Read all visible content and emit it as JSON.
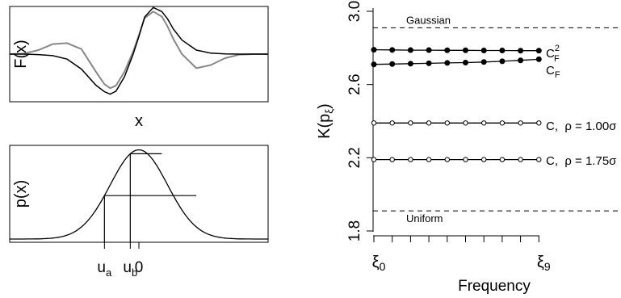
{
  "chart_data": [
    {
      "type": "line",
      "xlabel": "x",
      "ylabel": "F(x)",
      "grid": false,
      "series": [
        {
          "color": "#000000",
          "x": [
            -4.5,
            -4,
            -3.5,
            -3,
            -2.5,
            -2,
            -1.5,
            -1.2,
            -1,
            -0.8,
            -0.5,
            -0.2,
            0,
            0.2,
            0.5,
            0.8,
            1,
            1.2,
            1.5,
            2,
            2.5,
            3,
            3.5,
            4,
            4.5
          ],
          "y": [
            0,
            0,
            -0.01,
            -0.03,
            -0.1,
            -0.3,
            -0.62,
            -0.75,
            -0.8,
            -0.74,
            -0.45,
            0,
            0.35,
            0.74,
            0.93,
            0.85,
            0.7,
            0.5,
            0.28,
            0.08,
            0.02,
            0.005,
            0,
            0,
            0
          ]
        },
        {
          "color": "#888888",
          "x": [
            -4.5,
            -4,
            -3.5,
            -3,
            -2.5,
            -2,
            -1.5,
            -1.2,
            -1,
            -0.8,
            -0.5,
            -0.2,
            0,
            0.2,
            0.5,
            0.8,
            1,
            1.2,
            1.5,
            2,
            2.5,
            3,
            3.5,
            4,
            4.5
          ],
          "y": [
            0,
            0.01,
            0.08,
            0.2,
            0.22,
            0.1,
            -0.35,
            -0.6,
            -0.68,
            -0.63,
            -0.35,
            0.05,
            0.38,
            0.72,
            0.85,
            0.75,
            0.55,
            0.3,
            0,
            -0.28,
            -0.22,
            -0.08,
            -0.01,
            0,
            0
          ]
        }
      ]
    },
    {
      "type": "line",
      "xlabel": "",
      "ylabel": "p(x)",
      "grid": false,
      "ticks": [
        "u_a",
        "u_b",
        "0"
      ],
      "series": [
        {
          "color": "#000000",
          "note": "standard normal density curve on x in [-4.5, 4.5]"
        }
      ],
      "levels": [
        {
          "label": "u_a",
          "x": -1.2,
          "from": -1.2,
          "to": 2.0
        },
        {
          "label": "u_b",
          "x": -0.3,
          "from": -0.3,
          "to": 0.8
        }
      ]
    },
    {
      "type": "line",
      "xlabel": "Frequency",
      "ylabel": "K(p_ξ)",
      "ylim": [
        1.8,
        3.0
      ],
      "yticks": [
        "1.8",
        "2.2",
        "2.6",
        "3.0"
      ],
      "xticks": [
        "ξ0",
        "ξ9"
      ],
      "grid": false,
      "series": [
        {
          "name": "C_F^2",
          "marker": "filled",
          "values": [
            2.79,
            2.789,
            2.788,
            2.788,
            2.787,
            2.787,
            2.786,
            2.786,
            2.785,
            2.785
          ]
        },
        {
          "name": "C_F",
          "marker": "filled",
          "values": [
            2.71,
            2.712,
            2.714,
            2.716,
            2.718,
            2.72,
            2.723,
            2.727,
            2.732,
            2.738
          ]
        },
        {
          "name": "C,  ρ = 1.00σ",
          "marker": "open",
          "values": [
            2.39,
            2.39,
            2.39,
            2.39,
            2.39,
            2.39,
            2.39,
            2.39,
            2.39,
            2.39
          ]
        },
        {
          "name": "C,  ρ = 1.75σ",
          "marker": "open",
          "values": [
            2.19,
            2.19,
            2.19,
            2.19,
            2.19,
            2.19,
            2.19,
            2.19,
            2.19,
            2.19
          ]
        }
      ],
      "reference_lines": [
        {
          "label": "Gaussian",
          "value": 2.91,
          "style": "dashed"
        },
        {
          "label": "Uniform",
          "value": 1.91,
          "style": "dashed"
        }
      ]
    }
  ]
}
